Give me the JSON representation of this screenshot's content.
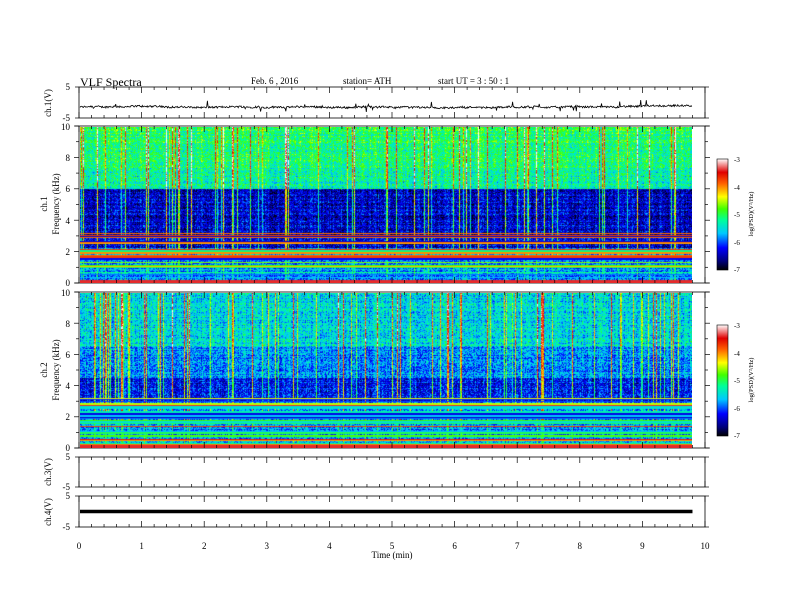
{
  "header": {
    "title": "VLF  Spectra",
    "date": "Feb. 6  , 2016",
    "station": "station= ATH",
    "start": "start  UT  =   3  : 50 : 1"
  },
  "chart_data": [
    {
      "type": "line",
      "panel": "ch1-waveform",
      "ylabel": "ch.1(V)",
      "ylim": [
        -5,
        5
      ],
      "yticks": [
        "5",
        "-5"
      ],
      "baseline": -1.5,
      "x_end": 9.8
    },
    {
      "type": "heatmap",
      "panel": "ch1-spectrogram",
      "ylabel_top": "ch.1",
      "ylabel": "Frequency  (kHz)",
      "ylim": [
        0,
        10
      ],
      "yticks": [
        "0",
        "2",
        "4",
        "6",
        "8",
        "10"
      ],
      "x_end": 9.8
    },
    {
      "type": "heatmap",
      "panel": "ch2-spectrogram",
      "ylabel_top": "ch.2",
      "ylabel": "Frequency  (kHz)",
      "ylim": [
        0,
        10
      ],
      "yticks": [
        "0",
        "2",
        "4",
        "6",
        "8",
        "10"
      ],
      "x_end": 9.8
    },
    {
      "type": "line",
      "panel": "ch3-waveform",
      "ylabel": "ch.3(V)",
      "ylim": [
        -5,
        5
      ],
      "yticks": [
        "5",
        "-5"
      ]
    },
    {
      "type": "line",
      "panel": "ch4-waveform",
      "ylabel": "ch.4(V)",
      "ylim": [
        -5,
        5
      ],
      "yticks": [
        "5",
        "-5"
      ],
      "baseline": 0,
      "x_end": 9.8
    }
  ],
  "xaxis": {
    "label": "Time  (min)",
    "xlim": [
      0,
      10
    ],
    "ticks": [
      "0",
      "1",
      "2",
      "3",
      "4",
      "5",
      "6",
      "7",
      "8",
      "9",
      "10"
    ]
  },
  "colorbar": {
    "label": "log(PSD)(V²/Hz)",
    "range": [
      -7,
      -3
    ],
    "ticks": [
      "-3",
      "-4",
      "-5",
      "-6",
      "-7"
    ]
  }
}
